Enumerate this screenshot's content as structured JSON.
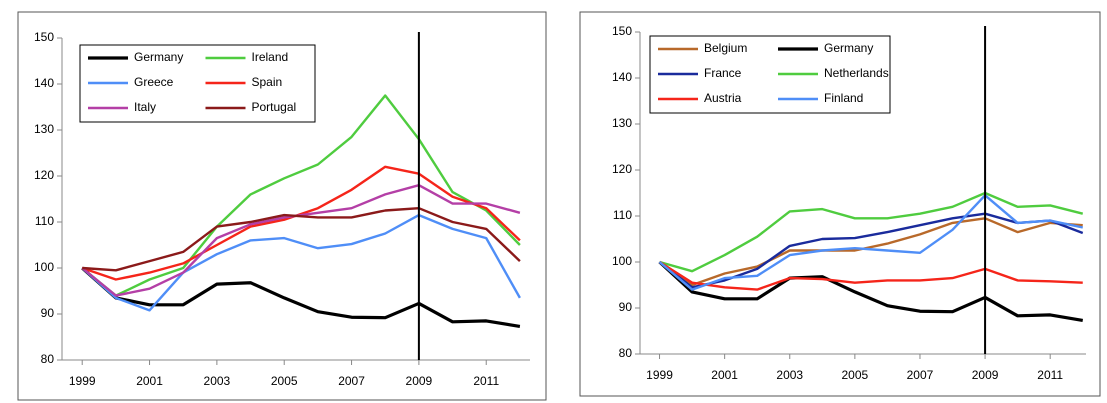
{
  "chart_data": [
    {
      "type": "line",
      "x": [
        1999,
        2000,
        2001,
        2002,
        2003,
        2004,
        2005,
        2006,
        2007,
        2008,
        2009,
        2010,
        2011,
        2012
      ],
      "xlim": [
        1998.4,
        2012.3
      ],
      "xticks": [
        1999,
        2001,
        2003,
        2005,
        2007,
        2009,
        2011
      ],
      "ylim": [
        80,
        150
      ],
      "yticks": [
        80,
        90,
        100,
        110,
        120,
        130,
        140,
        150
      ],
      "vline": 2009,
      "series": [
        {
          "name": "Germany",
          "color": "#000000",
          "values": [
            100,
            93.5,
            92,
            92,
            96.5,
            96.8,
            93.5,
            90.5,
            89.3,
            89.2,
            92.3,
            88.3,
            88.5,
            87.3
          ]
        },
        {
          "name": "Ireland",
          "color": "#4fcc3f",
          "values": [
            100,
            94,
            97.5,
            100,
            109,
            116,
            119.5,
            122.5,
            128.5,
            137.5,
            128,
            116.5,
            112.5,
            105
          ]
        },
        {
          "name": "Greece",
          "color": "#4f8ef7",
          "values": [
            100,
            93.5,
            90.8,
            99,
            103,
            106,
            106.5,
            104.3,
            105.2,
            107.5,
            111.5,
            108.5,
            106.5,
            93.5
          ]
        },
        {
          "name": "Spain",
          "color": "#f5251a",
          "values": [
            100,
            97.5,
            99,
            101,
            105,
            109,
            110.5,
            113,
            117,
            122,
            120.5,
            115.5,
            113,
            106
          ]
        },
        {
          "name": "Italy",
          "color": "#b43fa6",
          "values": [
            100,
            94,
            95.5,
            99,
            106.5,
            109.5,
            111,
            112,
            113,
            116,
            118,
            114,
            114,
            112
          ]
        },
        {
          "name": "Portugal",
          "color": "#8b1a1a",
          "values": [
            100,
            99.5,
            101.5,
            103.5,
            109,
            110,
            111.5,
            111,
            111,
            112.5,
            113,
            110,
            108.5,
            101.5
          ]
        }
      ]
    },
    {
      "type": "line",
      "x": [
        1999,
        2000,
        2001,
        2002,
        2003,
        2004,
        2005,
        2006,
        2007,
        2008,
        2009,
        2010,
        2011,
        2012
      ],
      "xlim": [
        1998.4,
        2012.1
      ],
      "xticks": [
        1999,
        2001,
        2003,
        2005,
        2007,
        2009,
        2011
      ],
      "ylim": [
        80,
        150
      ],
      "yticks": [
        80,
        90,
        100,
        110,
        120,
        130,
        140,
        150
      ],
      "vline": 2009,
      "series": [
        {
          "name": "Belgium",
          "color": "#b8692a",
          "values": [
            100,
            95,
            97.5,
            99,
            102.5,
            102.5,
            102.5,
            104,
            106,
            108.5,
            109.5,
            106.5,
            108.5,
            108
          ]
        },
        {
          "name": "Germany",
          "color": "#000000",
          "values": [
            100,
            93.5,
            92,
            92,
            96.5,
            96.8,
            93.5,
            90.5,
            89.3,
            89.2,
            92.3,
            88.3,
            88.5,
            87.3
          ]
        },
        {
          "name": "France",
          "color": "#1a2b9c",
          "values": [
            100,
            94.5,
            96,
            98.5,
            103.5,
            105,
            105.2,
            106.5,
            108,
            109.5,
            110.5,
            108.5,
            109,
            106.3
          ]
        },
        {
          "name": "Netherlands",
          "color": "#4fcc3f",
          "values": [
            100,
            98,
            101.5,
            105.5,
            111,
            111.5,
            109.5,
            109.5,
            110.5,
            112,
            115,
            112,
            112.3,
            110.5
          ]
        },
        {
          "name": "Austria",
          "color": "#f5251a",
          "values": [
            100,
            95.5,
            94.5,
            94,
            96.5,
            96.3,
            95.5,
            96,
            96,
            96.5,
            98.5,
            96,
            95.8,
            95.5
          ]
        },
        {
          "name": "Finland",
          "color": "#4f8ef7",
          "values": [
            100,
            94,
            96.5,
            97,
            101.5,
            102.5,
            103,
            102.5,
            102,
            107,
            114.5,
            108.5,
            109,
            107.5
          ]
        }
      ]
    }
  ]
}
